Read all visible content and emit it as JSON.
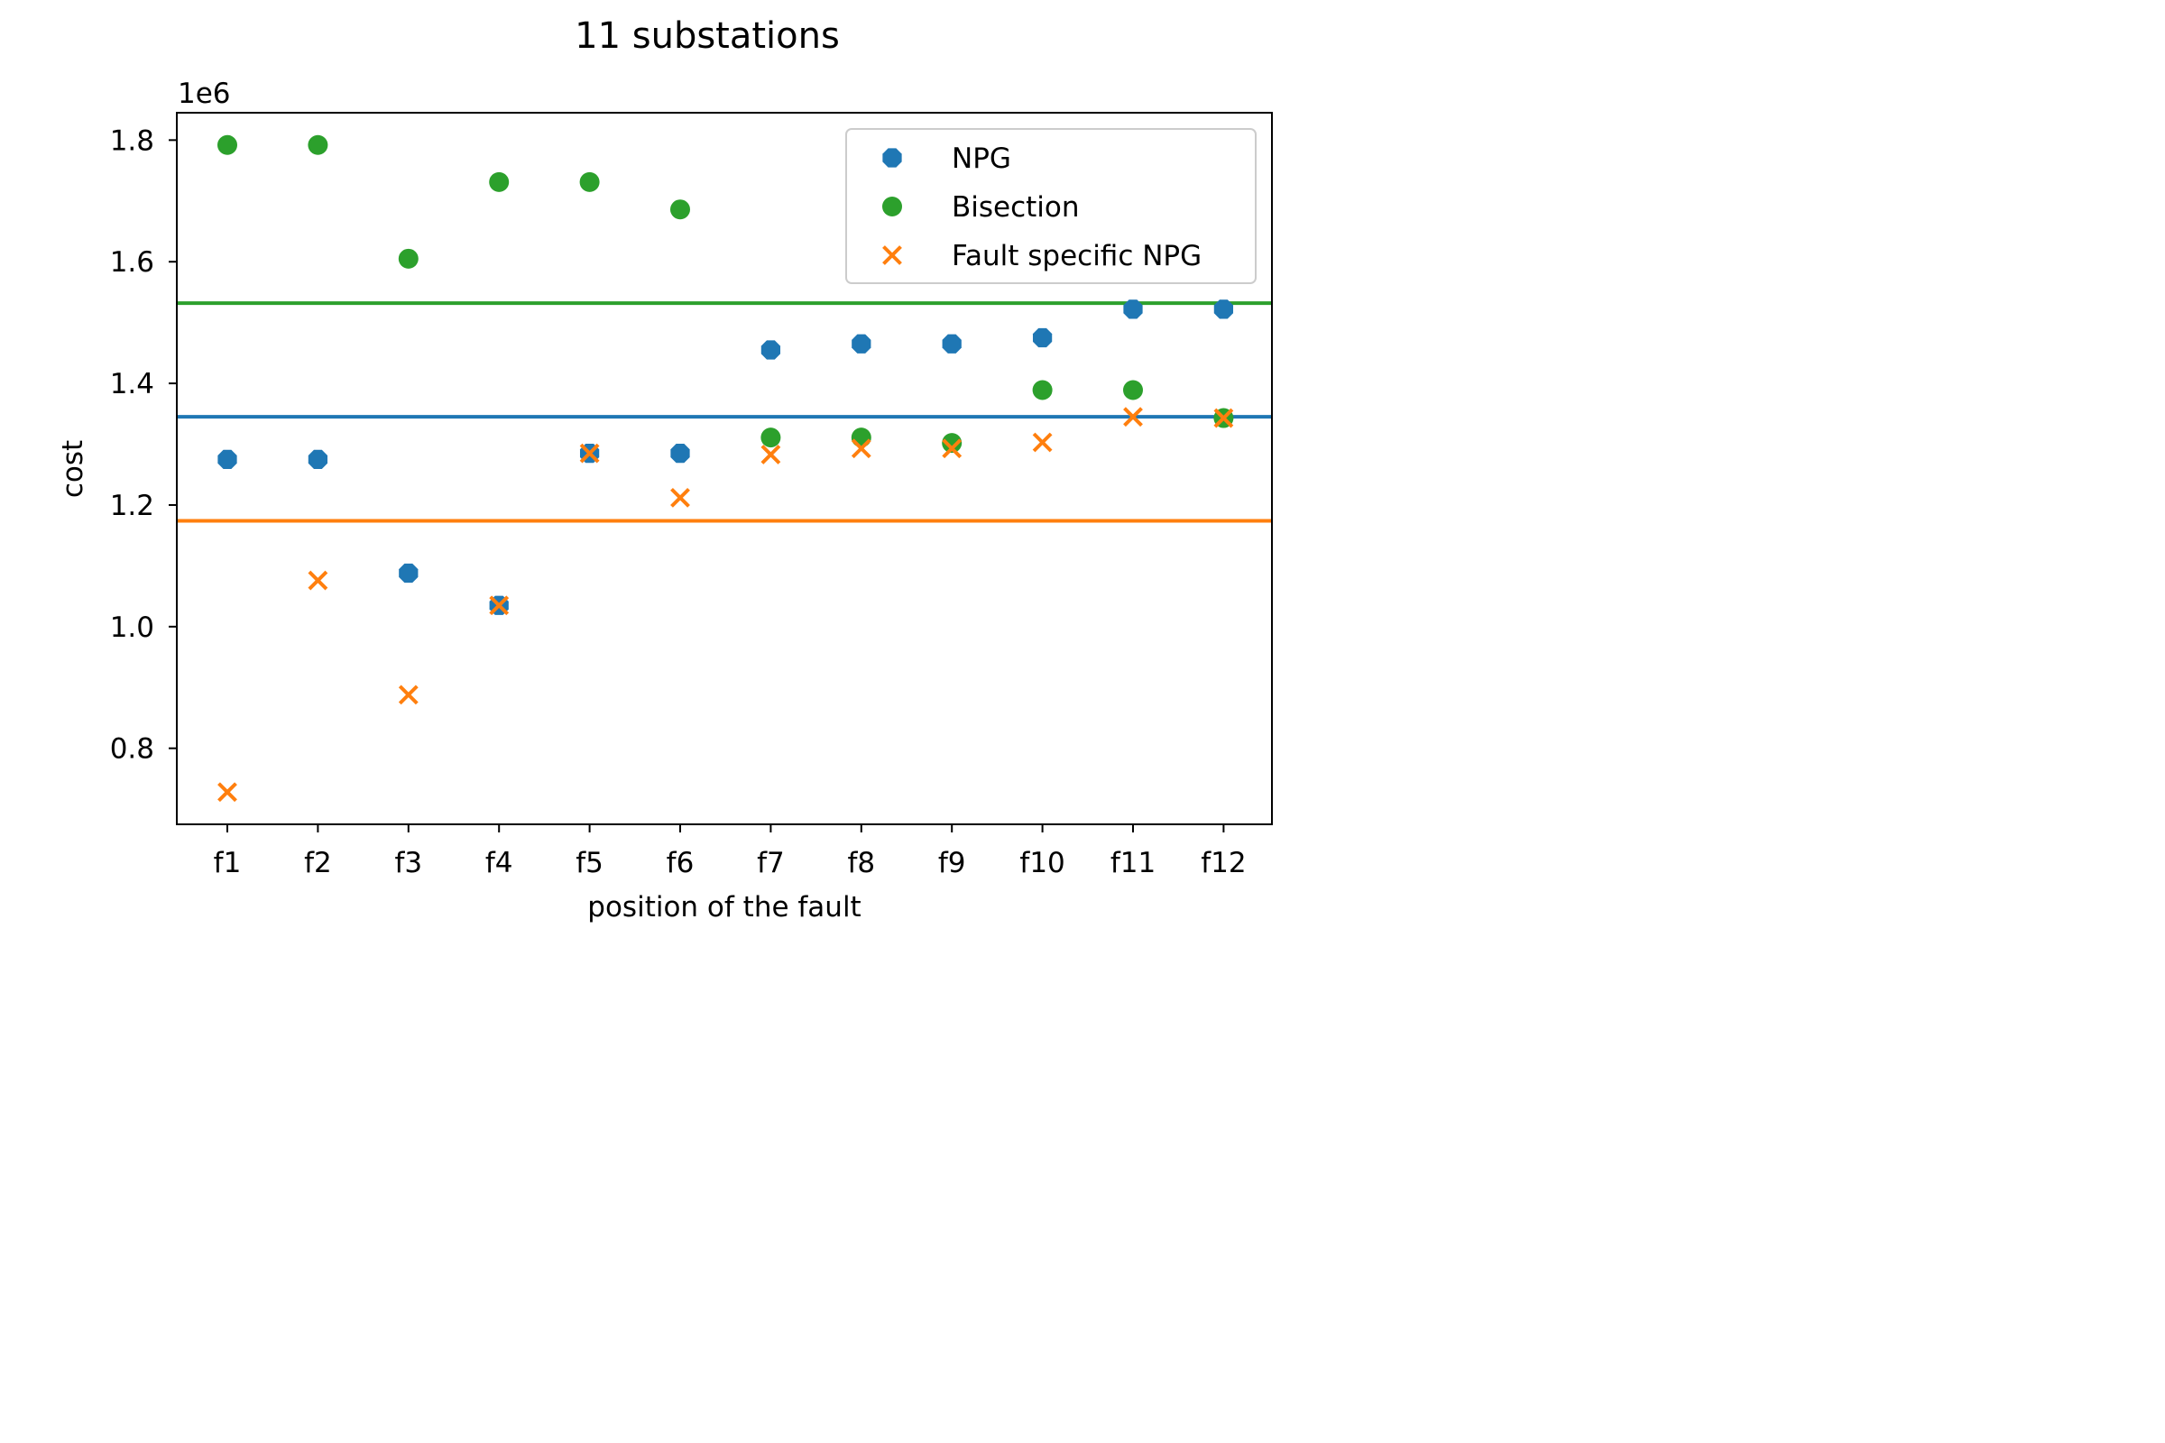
{
  "chart_data": {
    "type": "scatter",
    "title": "11 substations",
    "xlabel": "position of the fault",
    "ylabel": "cost",
    "y_offset_label": "1e6",
    "y_scale": 1000000,
    "categories": [
      "f1",
      "f2",
      "f3",
      "f4",
      "f5",
      "f6",
      "f7",
      "f8",
      "f9",
      "f10",
      "f11",
      "f12"
    ],
    "ylim": [
      0.675,
      1.845
    ],
    "yticks": [
      {
        "value": 0.8,
        "label": "0.8"
      },
      {
        "value": 1.0,
        "label": "1.0"
      },
      {
        "value": 1.2,
        "label": "1.2"
      },
      {
        "value": 1.4,
        "label": "1.4"
      },
      {
        "value": 1.6,
        "label": "1.6"
      },
      {
        "value": 1.8,
        "label": "1.8"
      }
    ],
    "grid": false,
    "legend_position": "top-right",
    "series": [
      {
        "name": "NPG",
        "marker": "octagon",
        "color": "#1f77b4",
        "values": [
          1.275,
          1.275,
          1.088,
          1.035,
          1.285,
          1.285,
          1.455,
          1.465,
          1.465,
          1.475,
          1.522,
          1.522
        ],
        "mean": 1.345
      },
      {
        "name": "Bisection",
        "marker": "circle",
        "color": "#2ca02c",
        "values": [
          1.792,
          1.792,
          1.605,
          1.731,
          1.731,
          1.686,
          1.311,
          1.311,
          1.302,
          1.389,
          1.389,
          1.343
        ],
        "mean": 1.532
      },
      {
        "name": "Fault specific NPG",
        "marker": "x",
        "color": "#ff7f0e",
        "values": [
          0.728,
          1.076,
          0.888,
          1.035,
          1.285,
          1.212,
          1.283,
          1.293,
          1.293,
          1.303,
          1.345,
          1.343
        ],
        "mean": 1.174
      }
    ]
  }
}
